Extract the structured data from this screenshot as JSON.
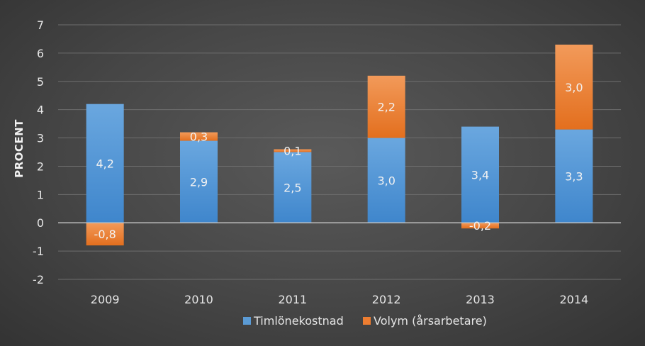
{
  "chart_data": {
    "type": "bar",
    "stacked": true,
    "categories": [
      "2009",
      "2010",
      "2011",
      "2012",
      "2013",
      "2014"
    ],
    "series": [
      {
        "name": "Timlönekostnad",
        "values": [
          4.2,
          2.9,
          2.5,
          3.0,
          3.4,
          3.3
        ],
        "labels": [
          "4,2",
          "2,9",
          "2,5",
          "3,0",
          "3,4",
          "3,3"
        ],
        "color": "#5b9bd5"
      },
      {
        "name": "Volym (årsarbetare)",
        "values": [
          -0.8,
          0.3,
          0.1,
          2.2,
          -0.2,
          3.0
        ],
        "labels": [
          "-0,8",
          "0,3",
          "0,1",
          "2,2",
          "-0,2",
          "3,0"
        ],
        "color": "#ed7d31"
      }
    ],
    "ylabel": "PROCENT",
    "xlabel": "",
    "ylim": [
      -2,
      7
    ],
    "yticks": [
      -2,
      -1,
      0,
      1,
      2,
      3,
      4,
      5,
      6,
      7
    ],
    "grid": true,
    "legend_position": "bottom"
  }
}
